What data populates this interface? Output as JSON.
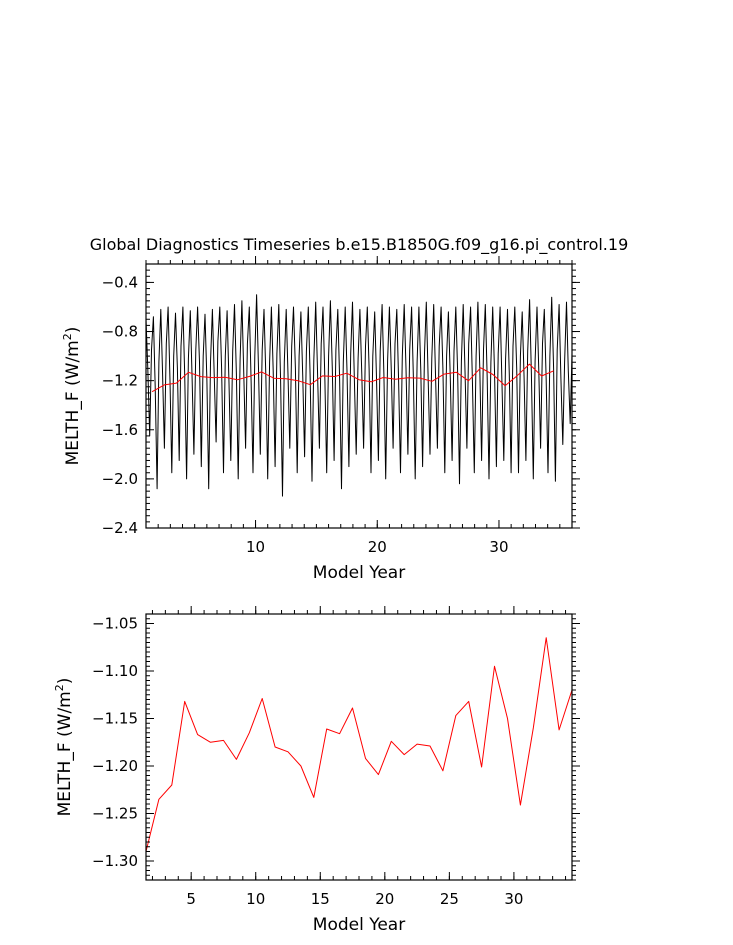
{
  "figure": {
    "title": "Global Diagnostics Timeseries b.e15.B1850G.f09_g16.pi_control.19"
  },
  "chart_data": [
    {
      "type": "line",
      "xlabel": "Model Year",
      "ylabel_main": "MELTH_F (W/m",
      "ylabel_sup": "2",
      "ylabel_tail": ")",
      "xlim": [
        1,
        36
      ],
      "ylim": [
        -2.4,
        -0.25
      ],
      "x_ticks": [
        10,
        20,
        30
      ],
      "x_tick_labels": [
        "10",
        "20",
        "30"
      ],
      "y_ticks": [
        -2.4,
        -2.0,
        -1.6,
        -1.2,
        -0.8,
        -0.4
      ],
      "y_tick_labels": [
        "−2.4",
        "−2.0",
        "−1.6",
        "−1.2",
        "−0.8",
        "−0.4"
      ],
      "series": [
        {
          "color": "#000000",
          "values": [
            -0.7,
            -1.1,
            -1.65,
            -0.95,
            -0.68,
            -1.25,
            -2.08,
            -1.05,
            -0.62,
            -1.15,
            -1.75,
            -0.9,
            -0.6,
            -1.2,
            -1.95,
            -1.0,
            -0.65,
            -1.1,
            -1.85,
            -0.92,
            -0.6,
            -1.15,
            -2.0,
            -1.02,
            -0.63,
            -1.18,
            -1.8,
            -0.95,
            -0.6,
            -1.05,
            -1.9,
            -1.0,
            -0.66,
            -1.2,
            -2.08,
            -1.05,
            -0.62,
            -1.15,
            -1.7,
            -0.88,
            -0.6,
            -1.1,
            -1.95,
            -1.0,
            -0.63,
            -1.22,
            -1.85,
            -0.96,
            -0.58,
            -1.15,
            -2.0,
            -1.03,
            -0.55,
            -1.12,
            -1.75,
            -0.9,
            -0.6,
            -1.2,
            -1.95,
            -1.0,
            -0.5,
            -1.1,
            -1.8,
            -0.95,
            -0.62,
            -1.18,
            -2.0,
            -1.05,
            -0.6,
            -1.12,
            -1.9,
            -0.98,
            -0.58,
            -1.2,
            -2.14,
            -1.05,
            -0.62,
            -1.15,
            -1.75,
            -0.92,
            -0.6,
            -1.1,
            -1.95,
            -1.0,
            -0.64,
            -1.18,
            -1.82,
            -0.96,
            -0.6,
            -1.15,
            -2.02,
            -1.04,
            -0.56,
            -1.12,
            -1.75,
            -0.9,
            -0.6,
            -1.2,
            -1.95,
            -1.0,
            -0.55,
            -1.1,
            -1.85,
            -0.95,
            -0.62,
            -1.18,
            -2.08,
            -1.05,
            -0.6,
            -1.12,
            -1.9,
            -0.98,
            -0.56,
            -1.2,
            -1.8,
            -1.02,
            -0.62,
            -1.15,
            -1.75,
            -0.92,
            -0.6,
            -1.1,
            -1.95,
            -1.0,
            -0.64,
            -1.18,
            -1.85,
            -0.96,
            -0.58,
            -1.15,
            -2.0,
            -1.04,
            -0.6,
            -1.12,
            -1.75,
            -0.9,
            -0.62,
            -1.2,
            -1.95,
            -1.0,
            -0.58,
            -1.1,
            -1.8,
            -0.95,
            -0.6,
            -1.18,
            -2.0,
            -1.05,
            -0.6,
            -1.12,
            -1.9,
            -0.98,
            -0.56,
            -1.2,
            -1.8,
            -1.02,
            -0.58,
            -1.15,
            -1.75,
            -0.92,
            -0.6,
            -1.1,
            -1.95,
            -1.0,
            -0.64,
            -1.18,
            -1.85,
            -0.96,
            -0.6,
            -1.15,
            -2.04,
            -1.04,
            -0.58,
            -1.12,
            -1.75,
            -0.9,
            -0.6,
            -1.2,
            -1.95,
            -1.0,
            -0.56,
            -1.1,
            -1.85,
            -0.95,
            -0.58,
            -1.18,
            -2.0,
            -1.05,
            -0.6,
            -1.12,
            -1.9,
            -0.98,
            -0.6,
            -1.2,
            -1.85,
            -1.02,
            -0.62,
            -1.15,
            -1.95,
            -0.92,
            -0.6,
            -1.1,
            -1.95,
            -1.0,
            -0.64,
            -1.18,
            -1.85,
            -0.96,
            -0.54,
            -1.15,
            -2.0,
            -1.04,
            -0.6,
            -1.12,
            -1.75,
            -0.9,
            -0.62,
            -1.2,
            -1.95,
            -1.0,
            -0.52,
            -1.1,
            -2.02,
            -0.95,
            -0.58,
            -1.18,
            -1.72,
            -1.05,
            -0.56,
            -1.12,
            -1.55,
            -0.98
          ]
        },
        {
          "color": "#ff0000",
          "x": [
            1.5,
            2.5,
            3.5,
            4.5,
            5.5,
            6.5,
            7.5,
            8.5,
            9.5,
            10.5,
            11.5,
            12.5,
            13.5,
            14.5,
            15.5,
            16.5,
            17.5,
            18.5,
            19.5,
            20.5,
            21.5,
            22.5,
            23.5,
            24.5,
            25.5,
            26.5,
            27.5,
            28.5,
            29.5,
            30.5,
            31.5,
            32.5,
            33.5,
            34.5
          ],
          "values": [
            -1.29,
            -1.235,
            -1.22,
            -1.132,
            -1.167,
            -1.175,
            -1.173,
            -1.193,
            -1.165,
            -1.129,
            -1.18,
            -1.185,
            -1.2,
            -1.233,
            -1.161,
            -1.166,
            -1.139,
            -1.192,
            -1.209,
            -1.174,
            -1.188,
            -1.177,
            -1.179,
            -1.205,
            -1.147,
            -1.132,
            -1.201,
            -1.095,
            -1.15,
            -1.241,
            -1.16,
            -1.065,
            -1.162,
            -1.12
          ]
        }
      ]
    },
    {
      "type": "line",
      "xlabel": "Model Year",
      "ylabel_main": "MELTH_F (W/m",
      "ylabel_sup": "2",
      "ylabel_tail": ")",
      "xlim": [
        1.5,
        34.5
      ],
      "ylim": [
        -1.32,
        -1.04
      ],
      "x_ticks": [
        5,
        10,
        15,
        20,
        25,
        30
      ],
      "x_tick_labels": [
        "5",
        "10",
        "15",
        "20",
        "25",
        "30"
      ],
      "y_ticks": [
        -1.3,
        -1.25,
        -1.2,
        -1.15,
        -1.1,
        -1.05
      ],
      "y_tick_labels": [
        "−1.30",
        "−1.25",
        "−1.20",
        "−1.15",
        "−1.10",
        "−1.05"
      ],
      "series": [
        {
          "color": "#ff0000",
          "x": [
            1.5,
            2.5,
            3.5,
            4.5,
            5.5,
            6.5,
            7.5,
            8.5,
            9.5,
            10.5,
            11.5,
            12.5,
            13.5,
            14.5,
            15.5,
            16.5,
            17.5,
            18.5,
            19.5,
            20.5,
            21.5,
            22.5,
            23.5,
            24.5,
            25.5,
            26.5,
            27.5,
            28.5,
            29.5,
            30.5,
            31.5,
            32.5,
            33.5,
            34.5
          ],
          "values": [
            -1.29,
            -1.235,
            -1.22,
            -1.132,
            -1.167,
            -1.175,
            -1.173,
            -1.193,
            -1.165,
            -1.129,
            -1.18,
            -1.185,
            -1.2,
            -1.233,
            -1.161,
            -1.166,
            -1.139,
            -1.192,
            -1.209,
            -1.174,
            -1.188,
            -1.177,
            -1.179,
            -1.205,
            -1.147,
            -1.132,
            -1.201,
            -1.095,
            -1.15,
            -1.241,
            -1.16,
            -1.065,
            -1.162,
            -1.12
          ]
        }
      ]
    }
  ]
}
